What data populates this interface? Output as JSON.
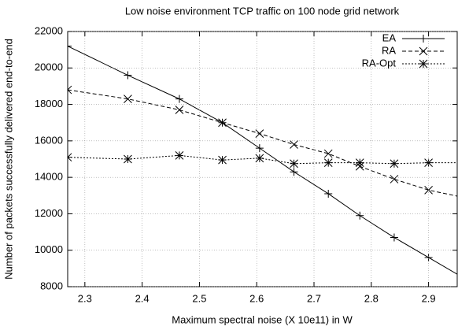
{
  "chart_data": {
    "type": "line",
    "title": "Low noise environment TCP traffic on 100 node grid network",
    "x_label": "Maximum spectral noise (X 10e11) in W",
    "y_label": "Number of packets successfully delivered end-to-end",
    "x": [
      2.27,
      2.375,
      2.465,
      2.54,
      2.605,
      2.665,
      2.725,
      2.78,
      2.84,
      2.9,
      2.96
    ],
    "series": [
      {
        "name": "EA",
        "color": "#000000",
        "dash": "solid",
        "marker": "plus",
        "values": [
          21200,
          19600,
          18300,
          17000,
          15600,
          14300,
          13100,
          11900,
          10700,
          9600,
          8500
        ]
      },
      {
        "name": "RA",
        "color": "#000000",
        "dash": "dashed",
        "marker": "cross",
        "values": [
          18800,
          18300,
          17700,
          17000,
          16400,
          15800,
          15300,
          14600,
          13900,
          13300,
          12900
        ]
      },
      {
        "name": "RA-Opt",
        "color": "#000000",
        "dash": "dotted",
        "marker": "star",
        "values": [
          15100,
          15000,
          15200,
          14950,
          15050,
          14750,
          14800,
          14800,
          14750,
          14800,
          14800
        ]
      }
    ],
    "xlim": [
      2.27,
      2.95
    ],
    "xticks": [
      2.3,
      2.4,
      2.5,
      2.6,
      2.7,
      2.8,
      2.9
    ],
    "ylim": [
      8000,
      22000
    ],
    "yticks": [
      8000,
      10000,
      12000,
      14000,
      16000,
      18000,
      20000,
      22000
    ],
    "grid": true,
    "legend": "top-right"
  }
}
